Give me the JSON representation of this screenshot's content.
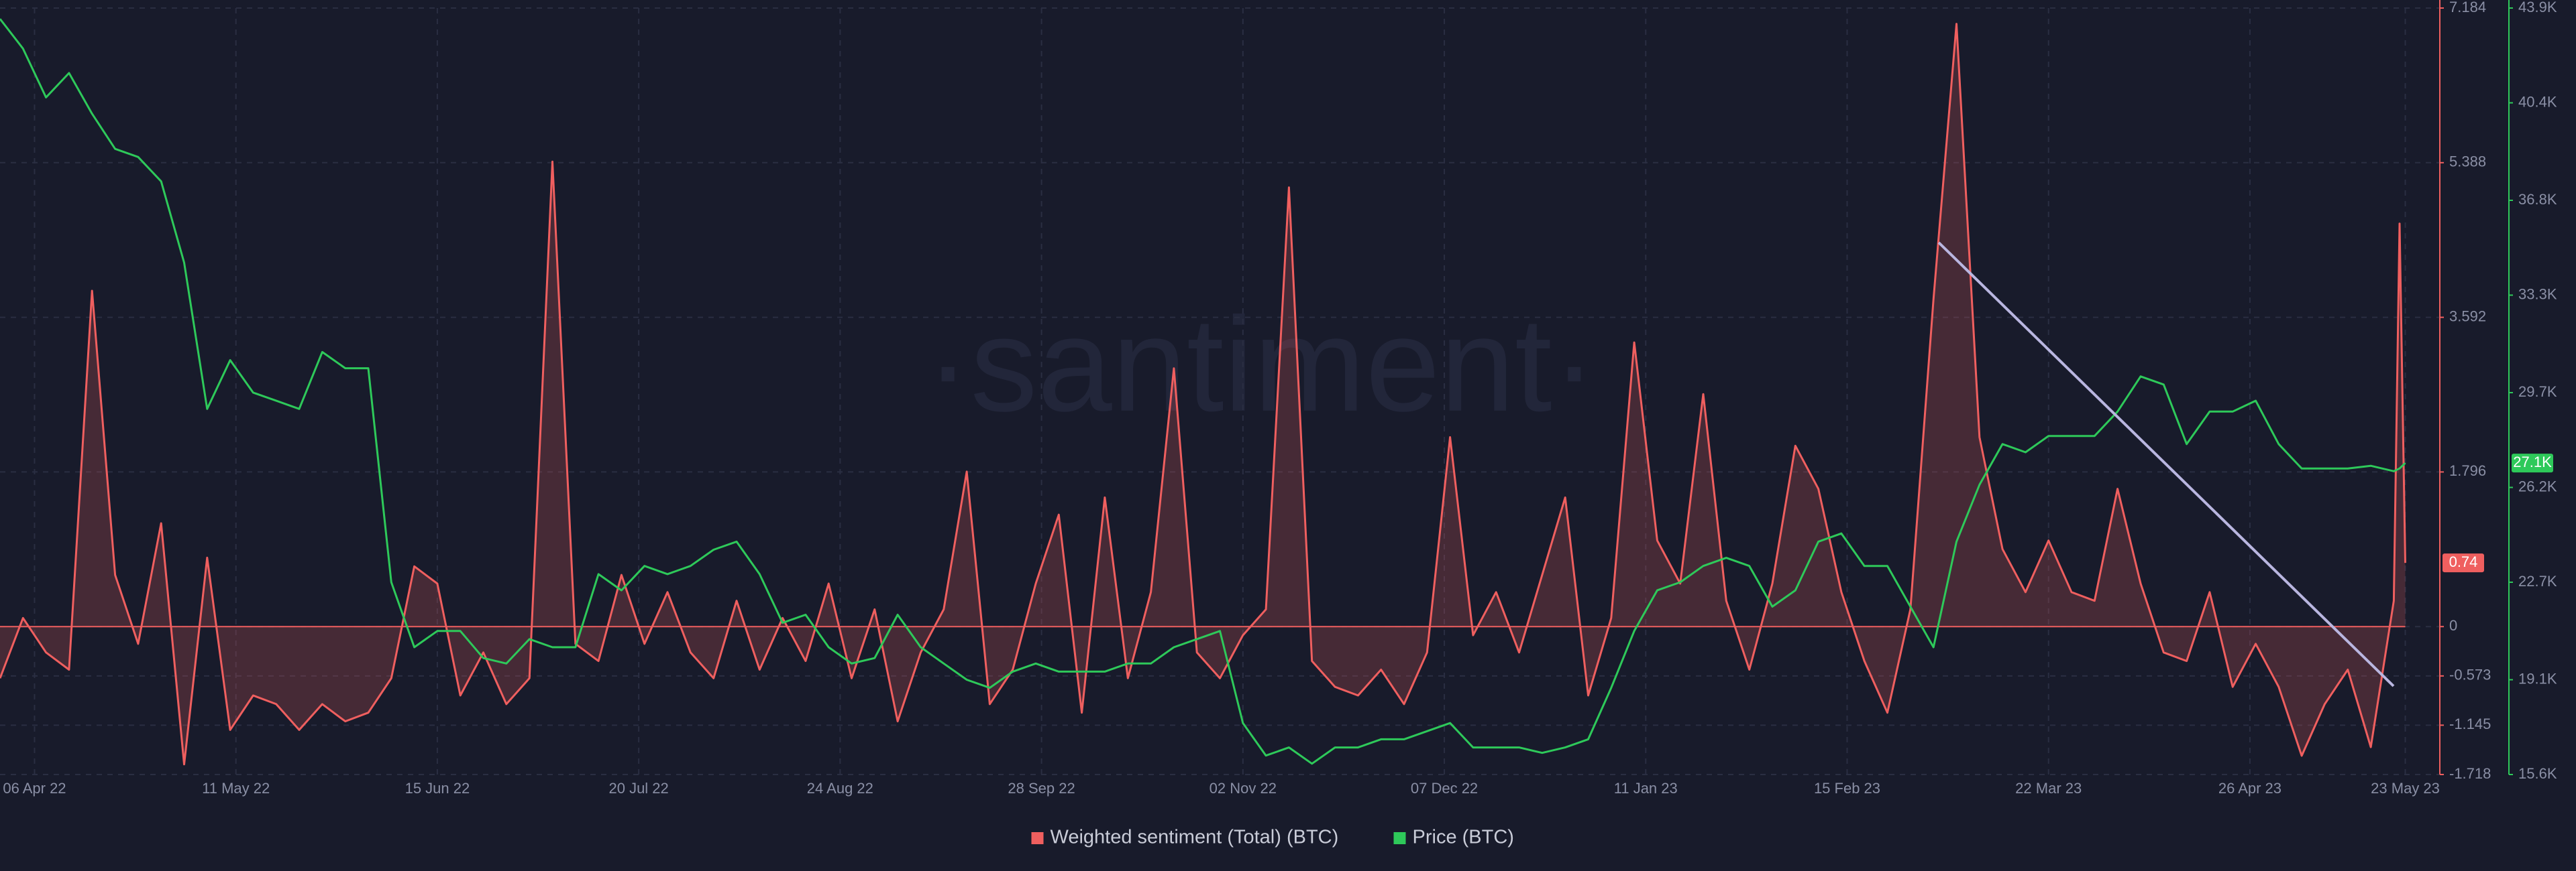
{
  "chart_data": {
    "type": "line",
    "watermark": "·santiment·",
    "x": [
      "2022-03-31",
      "2022-04-04",
      "2022-04-08",
      "2022-04-12",
      "2022-04-16",
      "2022-04-20",
      "2022-04-24",
      "2022-04-28",
      "2022-05-02",
      "2022-05-06",
      "2022-05-10",
      "2022-05-14",
      "2022-05-18",
      "2022-05-22",
      "2022-05-26",
      "2022-05-30",
      "2022-06-03",
      "2022-06-07",
      "2022-06-11",
      "2022-06-15",
      "2022-06-19",
      "2022-06-23",
      "2022-06-27",
      "2022-07-01",
      "2022-07-05",
      "2022-07-09",
      "2022-07-13",
      "2022-07-17",
      "2022-07-21",
      "2022-07-25",
      "2022-07-29",
      "2022-08-02",
      "2022-08-06",
      "2022-08-10",
      "2022-08-14",
      "2022-08-18",
      "2022-08-22",
      "2022-08-26",
      "2022-08-30",
      "2022-09-03",
      "2022-09-07",
      "2022-09-11",
      "2022-09-15",
      "2022-09-19",
      "2022-09-23",
      "2022-09-27",
      "2022-10-01",
      "2022-10-05",
      "2022-10-09",
      "2022-10-13",
      "2022-10-17",
      "2022-10-21",
      "2022-10-25",
      "2022-10-29",
      "2022-11-02",
      "2022-11-06",
      "2022-11-10",
      "2022-11-14",
      "2022-11-18",
      "2022-11-22",
      "2022-11-26",
      "2022-11-30",
      "2022-12-04",
      "2022-12-08",
      "2022-12-12",
      "2022-12-16",
      "2022-12-20",
      "2022-12-24",
      "2022-12-28",
      "2023-01-01",
      "2023-01-05",
      "2023-01-09",
      "2023-01-13",
      "2023-01-17",
      "2023-01-21",
      "2023-01-25",
      "2023-01-29",
      "2023-02-02",
      "2023-02-06",
      "2023-02-10",
      "2023-02-14",
      "2023-02-18",
      "2023-02-22",
      "2023-02-26",
      "2023-03-02",
      "2023-03-06",
      "2023-03-10",
      "2023-03-14",
      "2023-03-18",
      "2023-03-22",
      "2023-03-26",
      "2023-03-30",
      "2023-04-03",
      "2023-04-07",
      "2023-04-11",
      "2023-04-15",
      "2023-04-19",
      "2023-04-23",
      "2023-04-27",
      "2023-05-01",
      "2023-05-05",
      "2023-05-09",
      "2023-05-13",
      "2023-05-17",
      "2023-05-21",
      "2023-05-22",
      "2023-05-23"
    ],
    "xlim": [
      "2022-03-31",
      "2023-05-29"
    ],
    "xticks": [
      {
        "value": "2022-04-06",
        "label": "06 Apr 22"
      },
      {
        "value": "2022-05-11",
        "label": "11 May 22"
      },
      {
        "value": "2022-06-15",
        "label": "15 Jun 22"
      },
      {
        "value": "2022-07-20",
        "label": "20 Jul 22"
      },
      {
        "value": "2022-08-24",
        "label": "24 Aug 22"
      },
      {
        "value": "2022-09-28",
        "label": "28 Sep 22"
      },
      {
        "value": "2022-11-02",
        "label": "02 Nov 22"
      },
      {
        "value": "2022-12-07",
        "label": "07 Dec 22"
      },
      {
        "value": "2023-01-11",
        "label": "11 Jan 23"
      },
      {
        "value": "2023-02-15",
        "label": "15 Feb 23"
      },
      {
        "value": "2023-03-22",
        "label": "22 Mar 23"
      },
      {
        "value": "2023-04-26",
        "label": "26 Apr 23"
      },
      {
        "value": "2023-05-23",
        "label": "23 May 23"
      }
    ],
    "ylim": [
      -1.718,
      7.184
    ],
    "yticks": [
      7.184,
      5.388,
      3.592,
      1.796,
      0,
      -0.573,
      -1.145,
      -1.718
    ],
    "y2lim": [
      15600,
      43900
    ],
    "y2ticks": [
      {
        "value": 43900,
        "label": "43.9K"
      },
      {
        "value": 40400,
        "label": "40.4K"
      },
      {
        "value": 36800,
        "label": "36.8K"
      },
      {
        "value": 33300,
        "label": "33.3K"
      },
      {
        "value": 29700,
        "label": "29.7K"
      },
      {
        "value": 26200,
        "label": "26.2K"
      },
      {
        "value": 22700,
        "label": "22.7K"
      },
      {
        "value": 19100,
        "label": "19.1K"
      },
      {
        "value": 15600,
        "label": "15.6K"
      }
    ],
    "grid": true,
    "legend": "bottom",
    "series": [
      {
        "name": "Weighted sentiment (Total) (BTC)",
        "color": "#ef5f5f",
        "axis": "y",
        "area": true,
        "last_label": "0.74",
        "values": [
          -0.6,
          0.1,
          -0.3,
          -0.5,
          3.9,
          0.6,
          -0.2,
          1.2,
          -1.6,
          0.8,
          -1.2,
          -0.8,
          -0.9,
          -1.2,
          -0.9,
          -1.1,
          -1.0,
          -0.6,
          0.7,
          0.5,
          -0.8,
          -0.3,
          -0.9,
          -0.6,
          5.4,
          -0.2,
          -0.4,
          0.6,
          -0.2,
          0.4,
          -0.3,
          -0.6,
          0.3,
          -0.5,
          0.1,
          -0.4,
          0.5,
          -0.6,
          0.2,
          -1.1,
          -0.3,
          0.2,
          1.8,
          -0.9,
          -0.5,
          0.5,
          1.3,
          -1.0,
          1.5,
          -0.6,
          0.4,
          3.0,
          -0.3,
          -0.6,
          -0.1,
          0.2,
          5.1,
          -0.4,
          -0.7,
          -0.8,
          -0.5,
          -0.9,
          -0.3,
          2.2,
          -0.1,
          0.4,
          -0.3,
          0.6,
          1.5,
          -0.8,
          0.1,
          3.3,
          1.0,
          0.5,
          2.7,
          0.3,
          -0.5,
          0.5,
          2.1,
          1.6,
          0.4,
          -0.4,
          -1.0,
          0.2,
          3.8,
          7.0,
          2.2,
          0.9,
          0.4,
          1.0,
          0.4,
          0.3,
          1.6,
          0.5,
          -0.3,
          -0.4,
          0.4,
          -0.7,
          -0.2,
          -0.7,
          -1.5,
          -0.9,
          -0.5,
          -1.4,
          0.3,
          4.68,
          0.74
        ]
      },
      {
        "name": "Price (BTC)",
        "color": "#2ec95a",
        "axis": "y2",
        "area": false,
        "last_label": "27.1K",
        "values": [
          43500,
          42400,
          40600,
          41500,
          40000,
          38700,
          38400,
          37500,
          34500,
          29100,
          30900,
          29700,
          29400,
          29100,
          31200,
          30600,
          30600,
          22700,
          20300,
          20900,
          20900,
          19900,
          19700,
          20600,
          20300,
          20300,
          23000,
          22400,
          23300,
          23000,
          23300,
          23900,
          24200,
          23000,
          21200,
          21500,
          20300,
          19700,
          19900,
          21500,
          20300,
          19700,
          19100,
          18800,
          19400,
          19700,
          19400,
          19400,
          19400,
          19700,
          19700,
          20300,
          20600,
          20900,
          17500,
          16300,
          16600,
          16000,
          16600,
          16600,
          16900,
          16900,
          17200,
          17500,
          16600,
          16600,
          16600,
          16400,
          16600,
          16900,
          18800,
          20900,
          22400,
          22700,
          23300,
          23600,
          23300,
          21800,
          22400,
          24200,
          24500,
          23300,
          23300,
          21800,
          20300,
          24200,
          26300,
          27800,
          27500,
          28100,
          28100,
          28100,
          29000,
          30300,
          30000,
          27800,
          29000,
          29000,
          29400,
          27800,
          26900,
          26900,
          26900,
          27000,
          26800,
          26900,
          27100
        ]
      }
    ]
  }
}
